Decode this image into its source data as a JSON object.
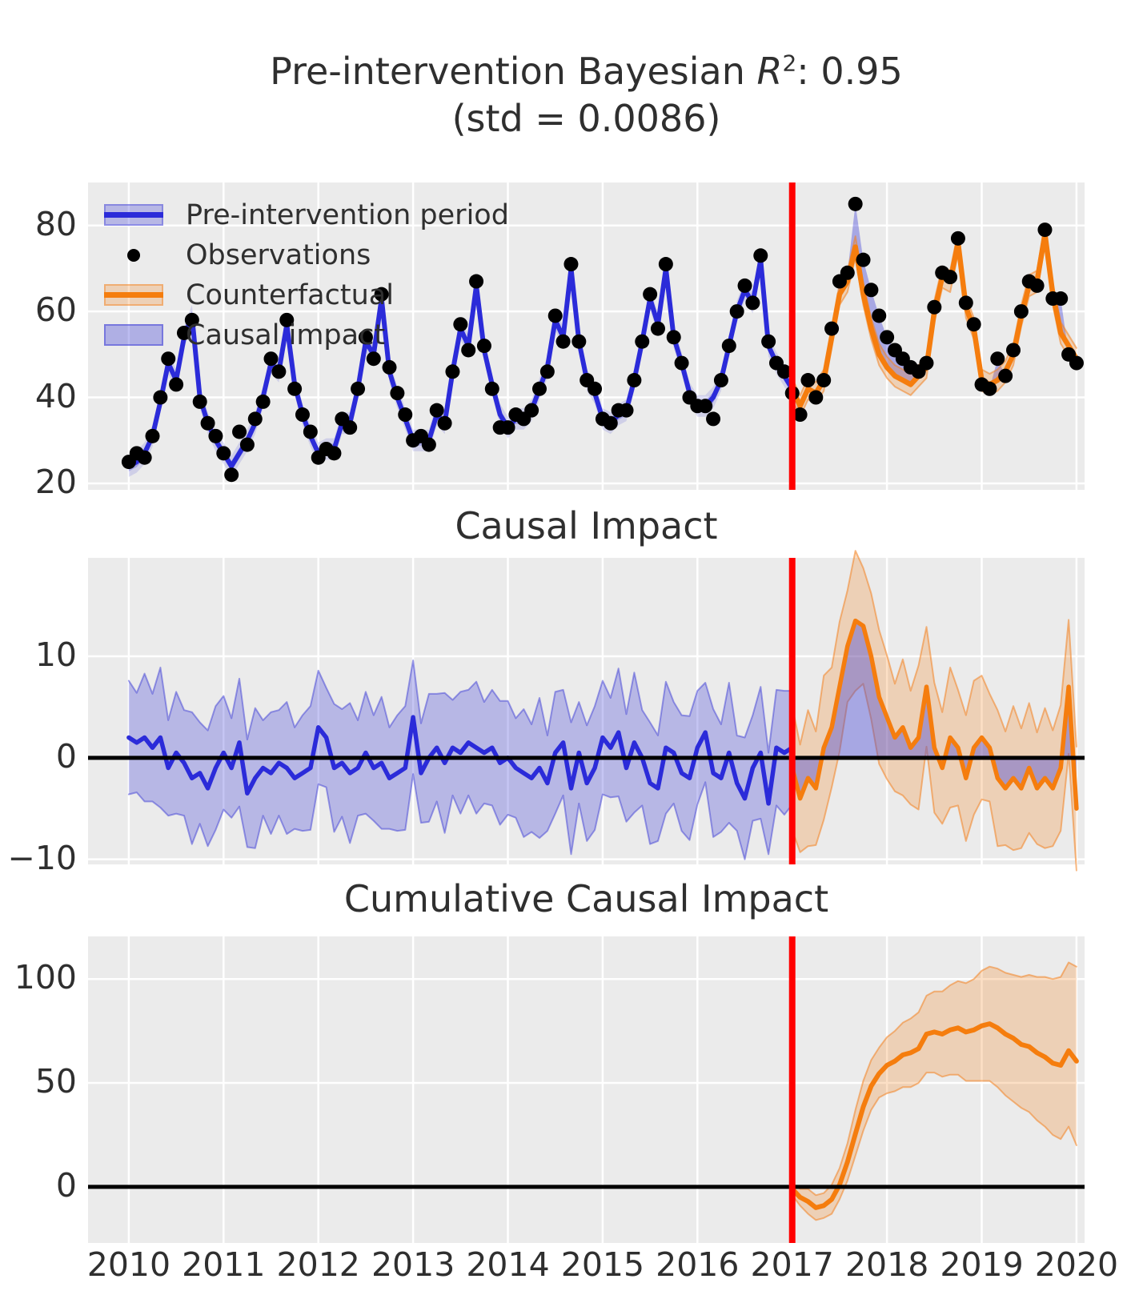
{
  "figure": {
    "title": {
      "prefix": "Pre-intervention Bayesian ",
      "r_symbol": "R",
      "r_exponent": "2",
      "r_value": ": 0.95",
      "line2": "(std = 0.0086)"
    },
    "panel_titles": {
      "middle": "Causal Impact",
      "bottom": "Cumulative Causal Impact"
    },
    "legend": {
      "items": [
        {
          "label": "Pre-intervention period",
          "type": "blue-band-line"
        },
        {
          "label": "Observations",
          "type": "black-dot"
        },
        {
          "label": "Counterfactual",
          "type": "orange-band-line"
        },
        {
          "label": "Causal impact",
          "type": "blue-fill"
        }
      ]
    },
    "x_tick_labels": [
      "2010",
      "2011",
      "2012",
      "2013",
      "2014",
      "2015",
      "2016",
      "2017",
      "2018",
      "2019",
      "2020"
    ],
    "colors": {
      "panel_background": "#ebebeb",
      "grid": "#ffffff",
      "blue_line": "#2b2bd9",
      "blue_band": "rgba(64,64,214,0.30)",
      "blue_band_light": "rgba(64,64,214,0.16)",
      "blue_fill": "rgba(64,64,214,0.40)",
      "orange_line": "#f57d0e",
      "orange_band": "rgba(243,130,32,0.26)",
      "orange_band_edge": "rgba(243,130,32,0.55)",
      "observation_dot": "#000000",
      "zero_line": "#000000",
      "intervention_line": "#ff0000",
      "text": "#2f2f2f"
    }
  },
  "chart_data": [
    {
      "type": "line",
      "name": "observed-and-counterfactual",
      "x_start": 2010,
      "x_end": 2020,
      "points_per_year": 12,
      "intervention_x": 2017,
      "split_index": 84,
      "ylim": [
        18.5,
        90
      ],
      "yticks": [
        20,
        40,
        60,
        80
      ],
      "band_halfwidth_inner": 1.2,
      "band_halfwidth_outer": 2.5,
      "observations": [
        25,
        27,
        26,
        31,
        40,
        49,
        43,
        55,
        58,
        39,
        34,
        31,
        27,
        22,
        32,
        29,
        35,
        39,
        49,
        46,
        58,
        42,
        36,
        32,
        26,
        28,
        27,
        35,
        33,
        42,
        54,
        49,
        64,
        47,
        41,
        36,
        30,
        31,
        29,
        37,
        34,
        46,
        57,
        51,
        67,
        52,
        42,
        33,
        33,
        36,
        35,
        37,
        42,
        46,
        59,
        53,
        71,
        53,
        44,
        42,
        35,
        34,
        37,
        37,
        44,
        53,
        64,
        56,
        71,
        54,
        48,
        40,
        38,
        38,
        35,
        44,
        52,
        60,
        66,
        62,
        73,
        53,
        48,
        46,
        41,
        36,
        44,
        40,
        44,
        56,
        67,
        69,
        85,
        72,
        65,
        59,
        54,
        51,
        49,
        47,
        46,
        48,
        61,
        69,
        68,
        77,
        62,
        57,
        43,
        42,
        49,
        45,
        51,
        60,
        67,
        66,
        79,
        63,
        63,
        50,
        48
      ],
      "model_mean": [
        24,
        25,
        27,
        31,
        39,
        48,
        44,
        54,
        59,
        40,
        34,
        30,
        27,
        24,
        27,
        30,
        34,
        40,
        48,
        46,
        57,
        43,
        36,
        31,
        27,
        28,
        28,
        34,
        34,
        42,
        53,
        50,
        63,
        46,
        40,
        35,
        30,
        30,
        30,
        36,
        34,
        46,
        56,
        52,
        66,
        51,
        43,
        36,
        33,
        35,
        35,
        37,
        42,
        47,
        58,
        54,
        70,
        53,
        44,
        41,
        35,
        34,
        36,
        37,
        44,
        53,
        63,
        57,
        70,
        54,
        48,
        41,
        38,
        38,
        40,
        44,
        52,
        60,
        65,
        62,
        72,
        52,
        48,
        45,
        42,
        38,
        42,
        41,
        44,
        54,
        64,
        67,
        75,
        64,
        56,
        50,
        47,
        45,
        44,
        43,
        45,
        47,
        60,
        68,
        67,
        76,
        61,
        56,
        44,
        43,
        44,
        46,
        50,
        59,
        66,
        67,
        78,
        64,
        55,
        52,
        49
      ]
    },
    {
      "type": "line",
      "name": "causal-impact",
      "title": "Causal Impact",
      "ylim": [
        -10.5,
        19.7
      ],
      "yticks": [
        10,
        0,
        -10
      ],
      "zero_line": 0,
      "intervention_x": 2017,
      "pre_x_start": 2010,
      "impact_pre": [
        2,
        1.5,
        2,
        1,
        2,
        -1,
        0.5,
        -0.5,
        -2,
        -1.5,
        -3,
        -1,
        0.5,
        -1,
        1.5,
        -3.5,
        -2,
        -1,
        -1.5,
        -0.5,
        -1,
        -2,
        -1.5,
        -1,
        3,
        2,
        -1,
        -0.5,
        -1.5,
        -1,
        0.5,
        -1,
        -0.5,
        -2,
        -1.5,
        -1,
        4,
        -1.5,
        0,
        1,
        -0.5,
        1,
        0.5,
        1.5,
        1,
        0.5,
        1,
        -0.5,
        0,
        -1,
        -1.5,
        -2,
        -1,
        -2.5,
        0.5,
        1.5,
        -3,
        0.5,
        -2.5,
        -1,
        2,
        1,
        2.5,
        -1,
        1.5,
        0,
        -2.5,
        -3,
        1,
        0.5,
        -1.5,
        -2,
        1,
        2.5,
        -1.5,
        -2,
        0.5,
        -2.5,
        -4,
        -1,
        0.5,
        -4.5,
        1,
        0.5,
        1
      ],
      "post_x_start": 2017,
      "impact_post": [
        -1,
        -4,
        -2,
        -3,
        1,
        3,
        7,
        11,
        13.5,
        13,
        10,
        6,
        4,
        2,
        3,
        1,
        2,
        7,
        1,
        -1,
        2,
        1,
        -2,
        1,
        2,
        1,
        -2,
        -3,
        -2,
        -3,
        -1,
        -3,
        -2,
        -3,
        -1,
        7,
        -5
      ],
      "hdi_halfwidth_pre": [
        5.6,
        4.9,
        6.3,
        5.3,
        6.9,
        4.7,
        6.0,
        5.2,
        6.5,
        5.0,
        5.7,
        6.1
      ],
      "hdi_halfwidth_post": [
        6.1,
        5.3,
        6.7,
        5.6,
        7.1,
        5.9,
        6.4,
        5.5,
        6.9,
        5.7,
        6.2,
        6.6
      ]
    },
    {
      "type": "line",
      "name": "cumulative-causal-impact",
      "title": "Cumulative Causal Impact",
      "ylim": [
        -27,
        120.5
      ],
      "yticks": [
        0,
        50,
        100
      ],
      "zero_line": 0,
      "intervention_x": 2017,
      "x_start": 2017,
      "mean": [
        -1,
        -5,
        -7,
        -10,
        -9,
        -6,
        1,
        12,
        25.5,
        38.5,
        48.5,
        54.5,
        58.5,
        60.5,
        63.5,
        64.5,
        66.5,
        73.5,
        74.5,
        73.5,
        75.5,
        76.5,
        74.5,
        75.5,
        77.5,
        78.5,
        76.5,
        73.5,
        71.5,
        68.5,
        67.5,
        64.5,
        62.5,
        59.5,
        58.5,
        65.5,
        60.5
      ],
      "lower": [
        -4,
        -9,
        -13,
        -16,
        -15,
        -13,
        -6,
        3,
        15,
        27,
        37,
        43,
        45,
        46,
        48,
        48,
        50,
        55,
        55,
        53,
        54,
        54,
        51,
        51,
        51,
        51,
        48,
        44,
        41,
        38,
        36,
        32,
        29,
        25,
        23,
        29,
        20
      ],
      "upper": [
        2,
        -1,
        -1,
        -4,
        -3,
        1,
        9,
        21,
        37,
        51,
        61,
        67,
        72,
        75,
        79,
        81,
        84,
        92,
        94,
        94,
        97,
        99,
        98,
        100,
        104,
        106,
        105,
        103,
        102,
        101,
        102,
        101,
        101,
        100,
        101,
        108,
        106
      ]
    }
  ]
}
